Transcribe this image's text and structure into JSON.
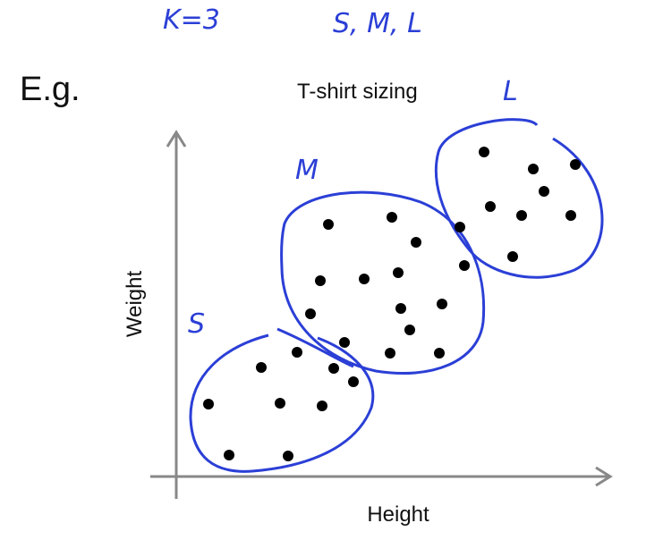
{
  "annotations": {
    "k": "K=3",
    "sizes": "S, M, L"
  },
  "header": {
    "eg": "E.g.",
    "title": "T-shirt sizing"
  },
  "clusters": [
    {
      "label": "S"
    },
    {
      "label": "M"
    },
    {
      "label": "L"
    }
  ],
  "axes": {
    "y_label": "Weight",
    "x_label": "Height"
  }
}
